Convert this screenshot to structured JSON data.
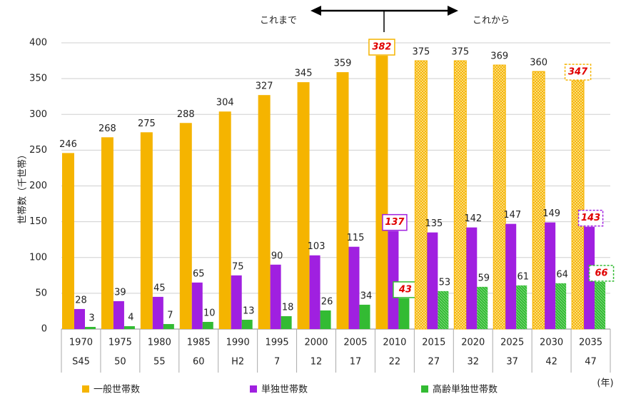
{
  "chart_data": {
    "type": "bar",
    "y_label": "世帯数（千世帯）",
    "annotation_left": "これまで",
    "annotation_right": "これから",
    "x_unit": "(年)",
    "categories": [
      "1970",
      "1975",
      "1980",
      "1985",
      "1990",
      "1995",
      "2000",
      "2005",
      "2010",
      "2015",
      "2020",
      "2025",
      "2030",
      "2035"
    ],
    "era_labels": [
      "S45",
      "50",
      "55",
      "60",
      "H2",
      "7",
      "12",
      "17",
      "22",
      "27",
      "32",
      "37",
      "42",
      "47"
    ],
    "series": [
      {
        "name": "一般世帯数",
        "color": "#f5b400",
        "values": [
          246,
          268,
          275,
          288,
          304,
          327,
          345,
          359,
          382,
          375,
          375,
          369,
          360,
          347
        ]
      },
      {
        "name": "単独世帯数",
        "color": "#a020e0",
        "values": [
          28,
          39,
          45,
          65,
          75,
          90,
          103,
          115,
          137,
          135,
          142,
          147,
          149,
          143
        ]
      },
      {
        "name": "高齢単独世帯数",
        "color": "#33bb33",
        "values": [
          3,
          4,
          7,
          10,
          13,
          18,
          26,
          34,
          43,
          53,
          59,
          61,
          64,
          66
        ]
      }
    ],
    "ylim": [
      0,
      400
    ],
    "yticks": [
      0,
      50,
      100,
      150,
      200,
      250,
      300,
      350,
      400
    ],
    "grid": true
  }
}
